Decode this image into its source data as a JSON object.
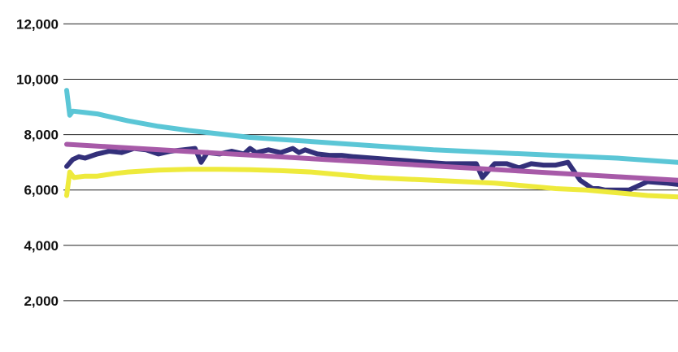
{
  "chart_data": {
    "type": "line",
    "title": "",
    "xlabel": "",
    "ylabel": "",
    "ylim": [
      0,
      12000
    ],
    "yticks": [
      {
        "value": 2000,
        "label": "2,000"
      },
      {
        "value": 4000,
        "label": "4,000"
      },
      {
        "value": 6000,
        "label": "6,000"
      },
      {
        "value": 8000,
        "label": "8,000"
      },
      {
        "value": 10000,
        "label": "10,000"
      },
      {
        "value": 12000,
        "label": "12,000"
      }
    ],
    "grid": true,
    "legend": "none",
    "xlim": [
      0,
      100
    ],
    "series": [
      {
        "color": "#5bc6d6",
        "x": [
          0,
          0.5,
          1,
          3,
          5,
          8,
          10,
          15,
          20,
          30,
          40,
          50,
          60,
          70,
          80,
          90,
          100
        ],
        "values": [
          9600,
          8700,
          8850,
          8800,
          8750,
          8600,
          8500,
          8300,
          8150,
          7900,
          7750,
          7600,
          7450,
          7350,
          7250,
          7150,
          7000
        ]
      },
      {
        "color": "#33307a",
        "x": [
          0,
          1,
          2,
          3,
          5,
          7,
          9,
          11,
          13,
          15,
          17,
          19,
          21,
          22,
          23,
          25,
          27,
          29,
          30,
          31,
          33,
          35,
          37,
          38,
          39,
          41,
          43,
          45,
          47,
          50,
          53,
          56,
          59,
          62,
          65,
          67,
          68,
          70,
          72,
          74,
          76,
          78,
          80,
          82,
          84,
          86,
          87,
          88,
          90,
          92,
          95,
          98,
          100
        ],
        "values": [
          6850,
          7100,
          7200,
          7150,
          7300,
          7400,
          7350,
          7500,
          7450,
          7300,
          7400,
          7450,
          7500,
          7000,
          7350,
          7300,
          7400,
          7300,
          7500,
          7350,
          7450,
          7350,
          7500,
          7350,
          7450,
          7300,
          7250,
          7250,
          7200,
          7150,
          7100,
          7050,
          7000,
          6950,
          6950,
          6950,
          6450,
          6950,
          6950,
          6800,
          6950,
          6900,
          6900,
          7000,
          6350,
          6050,
          6050,
          6000,
          6000,
          6000,
          6300,
          6250,
          6200
        ]
      },
      {
        "color": "#a75aa8",
        "x": [
          0,
          100
        ],
        "values": [
          7650,
          6350
        ]
      },
      {
        "color": "#eeea3c",
        "x": [
          0,
          0.5,
          1.2,
          3,
          5,
          8,
          10,
          15,
          20,
          25,
          30,
          35,
          40,
          45,
          50,
          55,
          60,
          65,
          70,
          75,
          80,
          85,
          90,
          95,
          100
        ],
        "values": [
          5800,
          6650,
          6450,
          6500,
          6500,
          6600,
          6650,
          6720,
          6750,
          6750,
          6730,
          6700,
          6650,
          6550,
          6450,
          6400,
          6350,
          6300,
          6250,
          6150,
          6050,
          6000,
          5900,
          5800,
          5750
        ]
      }
    ]
  }
}
